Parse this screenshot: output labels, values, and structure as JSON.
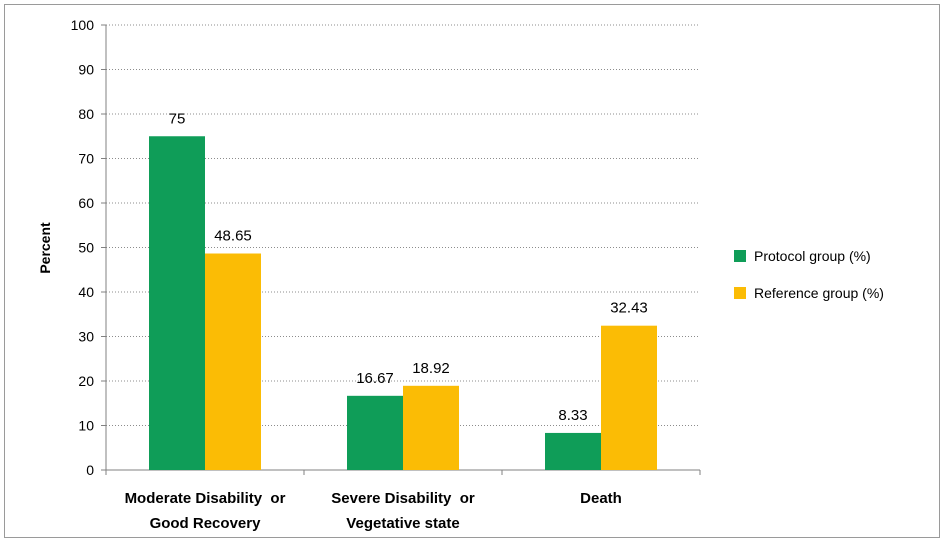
{
  "chart_data": {
    "type": "bar",
    "title": "",
    "xlabel": "",
    "ylabel": "Percent",
    "ylim": [
      0,
      100
    ],
    "yticks": [
      0,
      10,
      20,
      30,
      40,
      50,
      60,
      70,
      80,
      90,
      100
    ],
    "grid": true,
    "legend_position": "right",
    "categories": [
      [
        "Moderate Disability  or",
        "Good Recovery"
      ],
      [
        "Severe Disability  or",
        "Vegetative state"
      ],
      [
        "Death"
      ]
    ],
    "series": [
      {
        "name": "Protocol group (%)",
        "color": "#0f9d58",
        "values": [
          75,
          16.67,
          8.33
        ],
        "labels": [
          "75",
          "16.67",
          "8.33"
        ]
      },
      {
        "name": "Reference group (%)",
        "color": "#fbbc05",
        "values": [
          48.65,
          18.92,
          32.43
        ],
        "labels": [
          "48.65",
          "18.92",
          "32.43"
        ]
      }
    ]
  }
}
